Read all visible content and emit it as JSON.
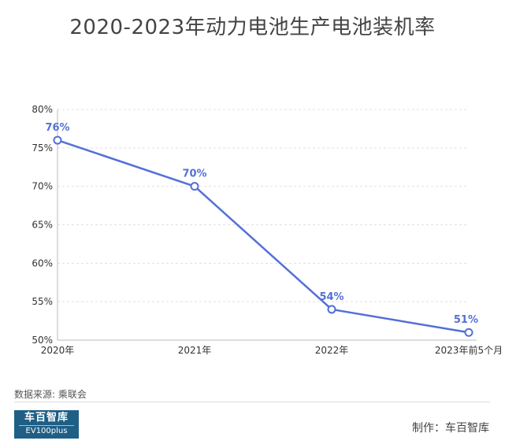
{
  "page": {
    "title": "2020-2023年动力电池生产电池装机率",
    "source": "数据来源: 乘联会",
    "logo_cn": "车百智库",
    "logo_en": "EV100plus",
    "credit": "制作：车百智库"
  },
  "colors": {
    "line": "#5470d6",
    "label": "#5470d6",
    "grid": "#e0e0e0",
    "axis_text": "#333333"
  },
  "chart_data": {
    "type": "line",
    "title": "2020-2023年动力电池生产电池装机率",
    "categories": [
      "2020年",
      "2021年",
      "2022年",
      "2023年前5个月"
    ],
    "series": [
      {
        "values": [
          76,
          70,
          54,
          51
        ],
        "labels": [
          "76%",
          "70%",
          "54%",
          "51%"
        ]
      }
    ],
    "ylim": [
      50,
      80
    ],
    "yticks": [
      "50%",
      "55%",
      "60%",
      "65%",
      "70%",
      "75%",
      "80%"
    ],
    "ytick_values": [
      50,
      55,
      60,
      65,
      70,
      75,
      80
    ],
    "grid": true,
    "xlabel": "",
    "ylabel": ""
  }
}
